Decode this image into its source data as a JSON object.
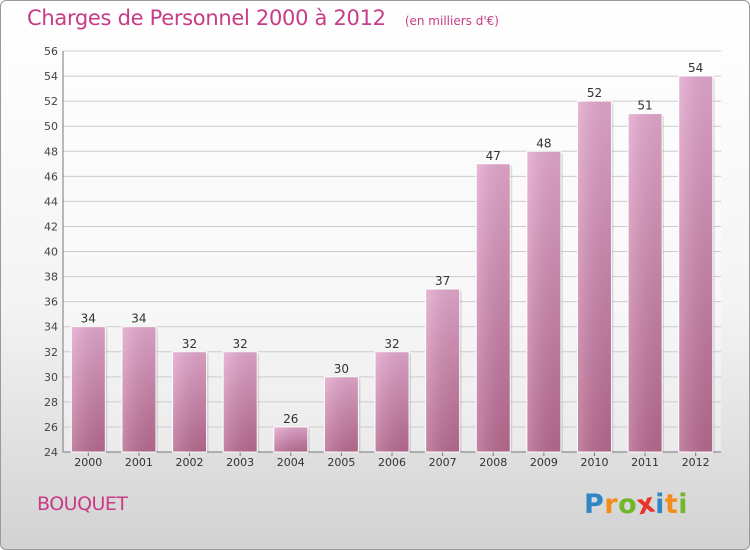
{
  "chart_data": {
    "type": "bar",
    "title": "Charges de Personnel 2000 à 2012",
    "subtitle": "(en milliers d'€)",
    "categories": [
      "2000",
      "2001",
      "2002",
      "2003",
      "2004",
      "2005",
      "2006",
      "2007",
      "2008",
      "2009",
      "2010",
      "2011",
      "2012"
    ],
    "values": [
      34,
      34,
      32,
      32,
      26,
      30,
      32,
      37,
      47,
      48,
      52,
      51,
      54
    ],
    "ylim": [
      24,
      56
    ],
    "yticks": [
      24,
      26,
      28,
      30,
      32,
      34,
      36,
      38,
      40,
      42,
      44,
      46,
      48,
      50,
      52,
      54,
      56
    ],
    "grid": true,
    "legend": "none",
    "bar_color": "#cc7aa8"
  },
  "footer": {
    "town": "BOUQUET",
    "brand": {
      "letters": [
        "P",
        "r",
        "o",
        "x",
        "i",
        "t",
        "i"
      ],
      "colors": [
        "#2f86c4",
        "#f28c1b",
        "#72b62a",
        "#e8342a",
        "#2f86c4",
        "#f28c1b",
        "#72b62a"
      ]
    }
  },
  "colors": {
    "accent": "#c83c87",
    "grid": "#cccccc"
  }
}
